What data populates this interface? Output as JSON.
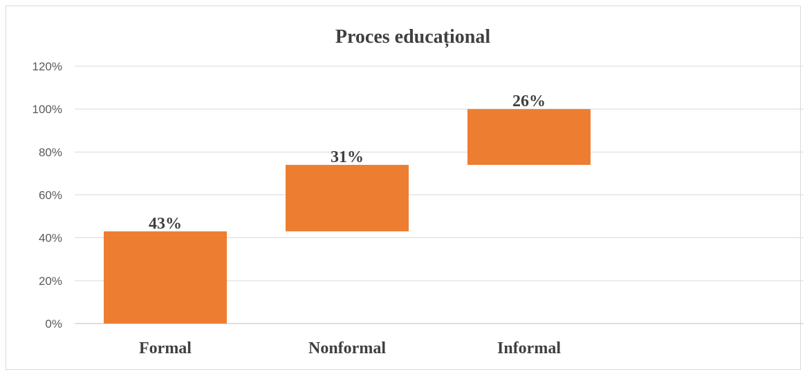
{
  "chart_data": {
    "type": "bar",
    "subtype": "waterfall",
    "title": "Proces educațional",
    "xlabel": "",
    "ylabel": "",
    "categories": [
      "Formal",
      "Nonformal",
      "Informal"
    ],
    "series": [
      {
        "values": [
          43,
          31,
          26
        ],
        "bases": [
          0,
          43,
          74
        ],
        "data_labels": [
          "43%",
          "31%",
          "26%"
        ]
      }
    ],
    "ylim": [
      0,
      120
    ],
    "yticks": [
      0,
      20,
      40,
      60,
      80,
      100,
      120
    ],
    "ytick_labels": [
      "0%",
      "20%",
      "40%",
      "60%",
      "80%",
      "100%",
      "120%"
    ],
    "grid": true,
    "legend": "none",
    "bar_color": "#ed7d31",
    "grid_color": "#d9d9d9"
  }
}
